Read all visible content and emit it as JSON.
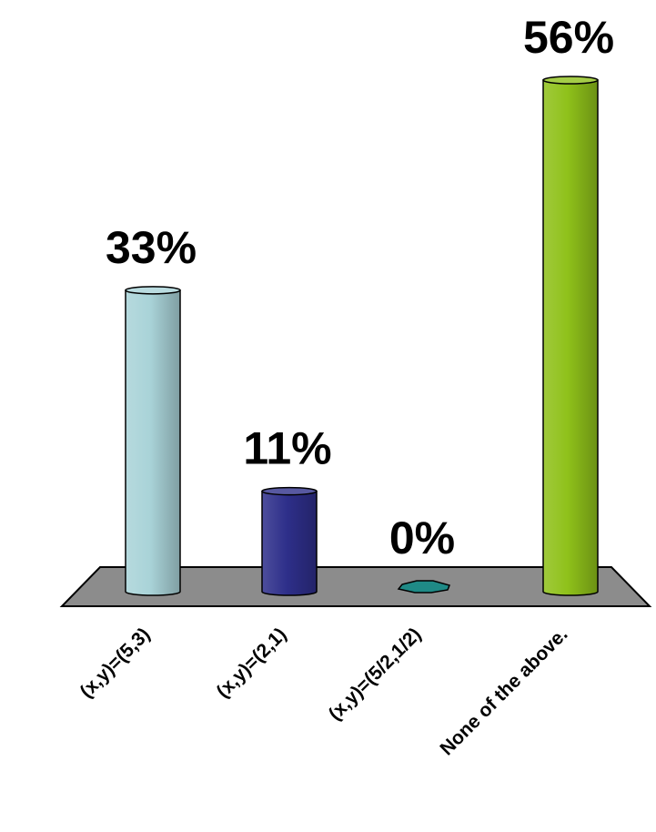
{
  "chart_data": {
    "type": "bar",
    "categories": [
      "(x,y)=(5,3)",
      "(x,y)=(2,1)",
      "(x,y)=(5/2,1/2)",
      "None of the above."
    ],
    "values": [
      33,
      11,
      0,
      56
    ],
    "value_labels": [
      "33%",
      "11%",
      "0%",
      "56%"
    ],
    "ylim": [
      0,
      56
    ],
    "title": "",
    "xlabel": "",
    "ylabel": "",
    "grid": false,
    "legend": "none",
    "colors": [
      "#a9d3d8",
      "#2e2f8a",
      "#1f8a86",
      "#8fc11a"
    ],
    "floor_color": "#8c8c8c"
  }
}
